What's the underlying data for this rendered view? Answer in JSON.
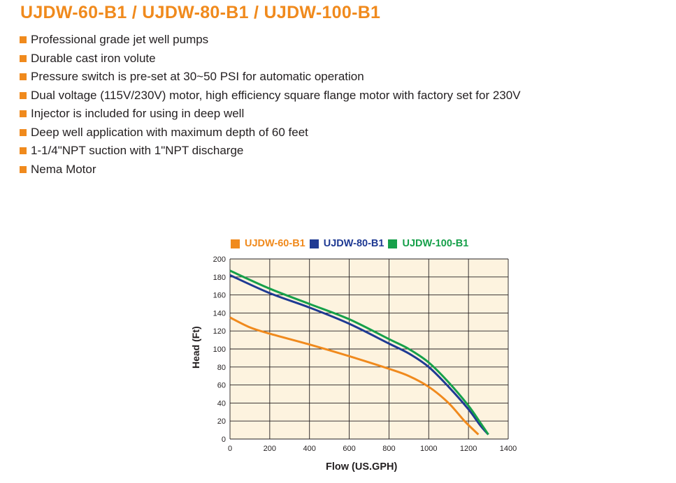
{
  "title": "UJDW-60-B1 / UJDW-80-B1 / UJDW-100-B1",
  "features": [
    "Professional grade jet well pumps",
    "Durable cast iron volute",
    "Pressure switch is pre-set at 30~50 PSI for automatic operation",
    "Dual voltage (115V/230V) motor, high efficiency square flange motor with factory set for 230V",
    "Injector is included for using in deep well",
    "Deep well application with maximum depth of 60 feet",
    "1-1/4\"NPT suction with 1\"NPT discharge",
    "Nema Motor"
  ],
  "colors": {
    "accent": "#f08a1d",
    "plot_background": "#fdf3df",
    "grid": "#231f20"
  },
  "chart_data": {
    "type": "line",
    "xlabel": "Flow (US.GPH)",
    "ylabel": "Head (Ft)",
    "xlim": [
      0,
      1400
    ],
    "ylim": [
      0,
      200
    ],
    "x_ticks": [
      0,
      200,
      400,
      600,
      800,
      1000,
      1200,
      1400
    ],
    "y_ticks": [
      0,
      20,
      40,
      60,
      80,
      100,
      120,
      140,
      160,
      180,
      200
    ],
    "grid": true,
    "legend_position": "top",
    "series": [
      {
        "name": "UJDW-60-B1",
        "color": "#f08a1d",
        "points": [
          [
            0,
            135
          ],
          [
            100,
            124
          ],
          [
            200,
            117
          ],
          [
            400,
            105
          ],
          [
            600,
            92
          ],
          [
            800,
            78
          ],
          [
            900,
            70
          ],
          [
            1000,
            58
          ],
          [
            1100,
            40
          ],
          [
            1180,
            20
          ],
          [
            1250,
            5
          ]
        ]
      },
      {
        "name": "UJDW-80-B1",
        "color": "#1f3a93",
        "points": [
          [
            0,
            182
          ],
          [
            200,
            162
          ],
          [
            400,
            146
          ],
          [
            600,
            128
          ],
          [
            800,
            106
          ],
          [
            900,
            95
          ],
          [
            1000,
            80
          ],
          [
            1100,
            58
          ],
          [
            1200,
            33
          ],
          [
            1260,
            15
          ],
          [
            1300,
            5
          ]
        ]
      },
      {
        "name": "UJDW-100-B1",
        "color": "#16a04a",
        "points": [
          [
            0,
            187
          ],
          [
            200,
            167
          ],
          [
            400,
            150
          ],
          [
            600,
            133
          ],
          [
            800,
            111
          ],
          [
            900,
            100
          ],
          [
            1000,
            85
          ],
          [
            1100,
            63
          ],
          [
            1200,
            37
          ],
          [
            1260,
            18
          ],
          [
            1300,
            5
          ]
        ]
      }
    ]
  }
}
